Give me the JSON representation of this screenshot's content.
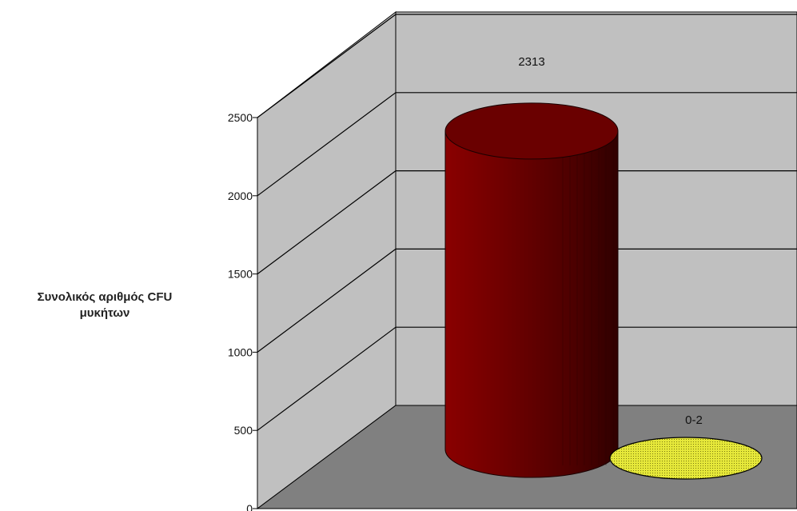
{
  "chart_data": {
    "type": "bar",
    "style": "3d-cylinder",
    "categories": [
      "",
      ""
    ],
    "series": [
      {
        "values": [
          2313,
          1
        ]
      }
    ],
    "data_labels": [
      "2313",
      "0-2"
    ],
    "bar_colors": [
      "#6e0000",
      "#e2e41e"
    ],
    "title": "",
    "xlabel": "",
    "ylabel": "Συνολικός αριθμός CFU μυκήτων",
    "ylabel_lines": [
      "Συνολικός αριθμός CFU",
      "μυκήτων"
    ],
    "ylim": [
      0,
      2500
    ],
    "yticks": [
      0,
      500,
      1000,
      1500,
      2000,
      2500
    ],
    "grid": true,
    "legend": "none",
    "colors": {
      "wall": "#c0c0c0",
      "floor": "#808080",
      "grid": "#000000"
    }
  }
}
